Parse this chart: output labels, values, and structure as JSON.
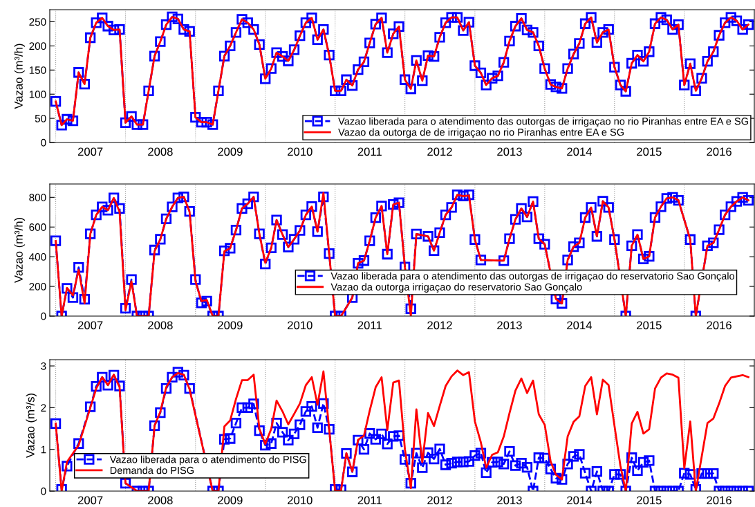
{
  "chart_data": [
    {
      "type": "line",
      "ylabel": "Vazao (m³/h)",
      "legend": "bottom right",
      "x": [
        "2007-01",
        "2007-02",
        "2007-03",
        "2007-04",
        "2007-05",
        "2007-06",
        "2007-07",
        "2007-08",
        "2007-09",
        "2007-10",
        "2007-11",
        "2007-12",
        "2008-01",
        "2008-02",
        "2008-03",
        "2008-04",
        "2008-05",
        "2008-06",
        "2008-07",
        "2008-08",
        "2008-09",
        "2008-10",
        "2008-11",
        "2008-12",
        "2009-01",
        "2009-02",
        "2009-03",
        "2009-04",
        "2009-05",
        "2009-06",
        "2009-07",
        "2009-08",
        "2009-09",
        "2009-10",
        "2009-11",
        "2009-12",
        "2010-01",
        "2010-02",
        "2010-03",
        "2010-04",
        "2010-05",
        "2010-06",
        "2010-07",
        "2010-08",
        "2010-09",
        "2010-10",
        "2010-11",
        "2010-12",
        "2011-01",
        "2011-02",
        "2011-03",
        "2011-04",
        "2011-05",
        "2011-06",
        "2011-07",
        "2011-08",
        "2011-09",
        "2011-10",
        "2011-11",
        "2011-12",
        "2012-01",
        "2012-02",
        "2012-03",
        "2012-04",
        "2012-05",
        "2012-06",
        "2012-07",
        "2012-08",
        "2012-09",
        "2012-10",
        "2012-11",
        "2012-12",
        "2013-01",
        "2013-02",
        "2013-03",
        "2013-04",
        "2013-05",
        "2013-06",
        "2013-07",
        "2013-08",
        "2013-09",
        "2013-10",
        "2013-11",
        "2013-12",
        "2014-01",
        "2014-02",
        "2014-03",
        "2014-04",
        "2014-05",
        "2014-06",
        "2014-07",
        "2014-08",
        "2014-09",
        "2014-10",
        "2014-11",
        "2014-12",
        "2015-01",
        "2015-02",
        "2015-03",
        "2015-04",
        "2015-05",
        "2015-06",
        "2015-07",
        "2015-08",
        "2015-09",
        "2015-10",
        "2015-11",
        "2015-12",
        "2016-01",
        "2016-02",
        "2016-03",
        "2016-04",
        "2016-05",
        "2016-06",
        "2016-07",
        "2016-08",
        "2016-09",
        "2016-10",
        "2016-11",
        "2016-12"
      ],
      "xlim": [
        "2006-12",
        "2017-01"
      ],
      "xticks": [
        {
          "value": "2007-07",
          "label": "2007"
        },
        {
          "value": "2008-07",
          "label": "2008"
        },
        {
          "value": "2009-07",
          "label": "2009"
        },
        {
          "value": "2010-07",
          "label": "2010"
        },
        {
          "value": "2011-07",
          "label": "2011"
        },
        {
          "value": "2012-07",
          "label": "2012"
        },
        {
          "value": "2013-07",
          "label": "2013"
        },
        {
          "value": "2014-07",
          "label": "2014"
        },
        {
          "value": "2015-07",
          "label": "2015"
        },
        {
          "value": "2016-07",
          "label": "2016"
        }
      ],
      "ylim": [
        0,
        275
      ],
      "yticks": [
        0,
        50,
        100,
        150,
        200,
        250
      ],
      "ref_lines": [
        {
          "axis": "x",
          "value": "2007-01",
          "color": "#a0a0a0",
          "line_style": "dotted"
        },
        {
          "axis": "x",
          "value": "2008-01",
          "color": "#a0a0a0",
          "line_style": "dotted"
        },
        {
          "axis": "x",
          "value": "2009-01",
          "color": "#a0a0a0",
          "line_style": "dotted"
        },
        {
          "axis": "x",
          "value": "2010-01",
          "color": "#a0a0a0",
          "line_style": "dotted"
        },
        {
          "axis": "x",
          "value": "2011-01",
          "color": "#a0a0a0",
          "line_style": "dotted"
        },
        {
          "axis": "x",
          "value": "2012-01",
          "color": "#a0a0a0",
          "line_style": "dotted"
        },
        {
          "axis": "x",
          "value": "2013-01",
          "color": "#a0a0a0",
          "line_style": "dotted"
        },
        {
          "axis": "x",
          "value": "2014-01",
          "color": "#a0a0a0",
          "line_style": "dotted"
        },
        {
          "axis": "x",
          "value": "2015-01",
          "color": "#a0a0a0",
          "line_style": "dotted"
        },
        {
          "axis": "x",
          "value": "2016-01",
          "color": "#a0a0a0",
          "line_style": "dotted"
        }
      ],
      "series": [
        {
          "name": "Vazao liberada para o atendimento das outorgas de irrigaçao no rio Piranhas entre EA e SG",
          "color": "#0000ff",
          "marker": "square",
          "line_style": "dashed",
          "values": [
            85,
            36,
            48,
            45,
            145,
            121,
            217,
            248,
            258,
            241,
            233,
            234,
            41,
            54,
            37,
            37,
            107,
            179,
            209,
            244,
            260,
            256,
            234,
            230,
            52,
            42,
            42,
            37,
            107,
            179,
            200,
            228,
            255,
            248,
            234,
            203,
            132,
            153,
            186,
            178,
            169,
            192,
            221,
            248,
            258,
            213,
            234,
            181,
            107,
            107,
            130,
            118,
            151,
            167,
            206,
            245,
            258,
            186,
            225,
            240,
            130,
            111,
            170,
            128,
            180,
            178,
            218,
            248,
            259,
            259,
            232,
            249,
            159,
            144,
            119,
            133,
            138,
            166,
            210,
            241,
            257,
            233,
            228,
            200,
            153,
            120,
            115,
            112,
            153,
            183,
            205,
            246,
            259,
            207,
            228,
            234,
            156,
            119,
            106,
            164,
            181,
            168,
            188,
            246,
            259,
            254,
            234,
            244,
            119,
            163,
            107,
            133,
            168,
            188,
            222,
            248,
            259,
            252,
            234,
            244
          ]
        },
        {
          "name": "Vazao da outorga de de irrigaçao no rio Piranhas entre EA e SG",
          "color": "#ff0000",
          "marker": "none",
          "line_style": "solid",
          "values": [
            85,
            36,
            48,
            45,
            145,
            121,
            217,
            248,
            258,
            241,
            233,
            234,
            41,
            54,
            37,
            37,
            107,
            179,
            209,
            244,
            260,
            256,
            234,
            230,
            52,
            42,
            42,
            37,
            107,
            179,
            200,
            228,
            255,
            248,
            234,
            203,
            132,
            153,
            186,
            178,
            169,
            192,
            221,
            248,
            258,
            213,
            234,
            181,
            107,
            107,
            130,
            118,
            151,
            167,
            206,
            245,
            258,
            186,
            225,
            240,
            130,
            111,
            170,
            128,
            180,
            178,
            218,
            248,
            259,
            259,
            232,
            249,
            159,
            144,
            119,
            133,
            138,
            166,
            210,
            241,
            257,
            233,
            228,
            200,
            153,
            120,
            115,
            112,
            153,
            183,
            205,
            246,
            259,
            207,
            228,
            234,
            156,
            119,
            106,
            164,
            181,
            168,
            188,
            246,
            259,
            254,
            234,
            244,
            119,
            163,
            107,
            133,
            168,
            188,
            222,
            248,
            259,
            252,
            234,
            244
          ]
        }
      ]
    },
    {
      "type": "line",
      "ylabel": "Vazao (m³/h)",
      "legend": "right",
      "x": [
        "2007-01",
        "2007-02",
        "2007-03",
        "2007-04",
        "2007-05",
        "2007-06",
        "2007-07",
        "2007-08",
        "2007-09",
        "2007-10",
        "2007-11",
        "2007-12",
        "2008-01",
        "2008-02",
        "2008-03",
        "2008-04",
        "2008-05",
        "2008-06",
        "2008-07",
        "2008-08",
        "2008-09",
        "2008-10",
        "2008-11",
        "2008-12",
        "2009-01",
        "2009-02",
        "2009-03",
        "2009-04",
        "2009-05",
        "2009-06",
        "2009-07",
        "2009-08",
        "2009-09",
        "2009-10",
        "2009-11",
        "2009-12",
        "2010-01",
        "2010-02",
        "2010-03",
        "2010-04",
        "2010-05",
        "2010-06",
        "2010-07",
        "2010-08",
        "2010-09",
        "2010-10",
        "2010-11",
        "2010-12",
        "2011-01",
        "2011-02",
        "2011-03",
        "2011-04",
        "2011-05",
        "2011-06",
        "2011-07",
        "2011-08",
        "2011-09",
        "2011-10",
        "2011-11",
        "2011-12",
        "2012-01",
        "2012-02",
        "2012-03",
        "2012-04",
        "2012-05",
        "2012-06",
        "2012-07",
        "2012-08",
        "2012-09",
        "2012-10",
        "2012-11",
        "2012-12",
        "2013-01",
        "2013-02",
        "2013-03",
        "2013-04",
        "2013-05",
        "2013-06",
        "2013-07",
        "2013-08",
        "2013-09",
        "2013-10",
        "2013-11",
        "2013-12",
        "2014-01",
        "2014-02",
        "2014-03",
        "2014-04",
        "2014-05",
        "2014-06",
        "2014-07",
        "2014-08",
        "2014-09",
        "2014-10",
        "2014-11",
        "2014-12",
        "2015-01",
        "2015-02",
        "2015-03",
        "2015-04",
        "2015-05",
        "2015-06",
        "2015-07",
        "2015-08",
        "2015-09",
        "2015-10",
        "2015-11",
        "2015-12",
        "2016-01",
        "2016-02",
        "2016-03",
        "2016-04",
        "2016-05",
        "2016-06",
        "2016-07",
        "2016-08",
        "2016-09",
        "2016-10",
        "2016-11",
        "2016-12"
      ],
      "xlim": [
        "2006-12",
        "2017-01"
      ],
      "xticks": [
        {
          "value": "2007-07",
          "label": "2007"
        },
        {
          "value": "2008-07",
          "label": "2008"
        },
        {
          "value": "2009-07",
          "label": "2009"
        },
        {
          "value": "2010-07",
          "label": "2010"
        },
        {
          "value": "2011-07",
          "label": "2011"
        },
        {
          "value": "2012-07",
          "label": "2012"
        },
        {
          "value": "2013-07",
          "label": "2013"
        },
        {
          "value": "2014-07",
          "label": "2014"
        },
        {
          "value": "2015-07",
          "label": "2015"
        },
        {
          "value": "2016-07",
          "label": "2016"
        }
      ],
      "ylim": [
        0,
        890
      ],
      "yticks": [
        0,
        200,
        400,
        600,
        800
      ],
      "ref_lines": [
        {
          "axis": "x",
          "value": "2007-01",
          "color": "#a0a0a0",
          "line_style": "dotted"
        },
        {
          "axis": "x",
          "value": "2008-01",
          "color": "#a0a0a0",
          "line_style": "dotted"
        },
        {
          "axis": "x",
          "value": "2009-01",
          "color": "#a0a0a0",
          "line_style": "dotted"
        },
        {
          "axis": "x",
          "value": "2010-01",
          "color": "#a0a0a0",
          "line_style": "dotted"
        },
        {
          "axis": "x",
          "value": "2011-01",
          "color": "#a0a0a0",
          "line_style": "dotted"
        },
        {
          "axis": "x",
          "value": "2012-01",
          "color": "#a0a0a0",
          "line_style": "dotted"
        },
        {
          "axis": "x",
          "value": "2013-01",
          "color": "#a0a0a0",
          "line_style": "dotted"
        },
        {
          "axis": "x",
          "value": "2014-01",
          "color": "#a0a0a0",
          "line_style": "dotted"
        },
        {
          "axis": "x",
          "value": "2015-01",
          "color": "#a0a0a0",
          "line_style": "dotted"
        },
        {
          "axis": "x",
          "value": "2016-01",
          "color": "#a0a0a0",
          "line_style": "dotted"
        }
      ],
      "series": [
        {
          "name": "Vazao liberada para o atendimento das outorgas de irrigaçao do reservatorio Sao Gonçalo",
          "color": "#0000ff",
          "marker": "square",
          "line_style": "dashed",
          "values": [
            507,
            0,
            187,
            125,
            328,
            114,
            554,
            682,
            736,
            714,
            796,
            725,
            53,
            246,
            0,
            0,
            0,
            445,
            518,
            655,
            736,
            796,
            803,
            705,
            246,
            89,
            101,
            0,
            0,
            440,
            457,
            580,
            725,
            757,
            803,
            554,
            351,
            460,
            647,
            549,
            465,
            518,
            577,
            682,
            738,
            569,
            803,
            421,
            0,
            0,
            null,
            125,
            356,
            374,
            507,
            663,
            741,
            417,
            752,
            764,
            330,
            50,
            553,
            null,
            537,
            441,
            562,
            682,
            732,
            817,
            809,
            817,
            516,
            378,
            null,
            null,
            null,
            373,
            521,
            652,
            725,
            668,
            772,
            521,
            484,
            null,
            115,
            85,
            378,
            468,
            493,
            664,
            732,
            537,
            774,
            732,
            516,
            null,
            0,
            474,
            549,
            385,
            402,
            665,
            737,
            793,
            800,
            780,
            null,
            516,
            0,
            null,
            474,
            493,
            582,
            682,
            737,
            773,
            800,
            780
          ]
        },
        {
          "name": "Vazao da outorga irrigaçao do reservatorio Sao Gonçalo",
          "color": "#ff0000",
          "marker": "none",
          "line_style": "solid",
          "values": [
            507,
            0,
            190,
            140,
            312,
            86,
            554,
            682,
            736,
            714,
            796,
            702,
            39,
            234,
            0,
            0,
            0,
            437,
            518,
            655,
            736,
            796,
            803,
            702,
            234,
            101,
            109,
            0,
            0,
            437,
            457,
            580,
            725,
            757,
            803,
            554,
            359,
            460,
            647,
            549,
            465,
            518,
            577,
            682,
            738,
            569,
            830,
            421,
            0,
            0,
            null,
            125,
            356,
            374,
            507,
            663,
            741,
            417,
            752,
            764,
            330,
            0,
            553,
            null,
            537,
            441,
            562,
            682,
            732,
            817,
            808,
            812,
            516,
            378,
            null,
            null,
            null,
            373,
            521,
            652,
            725,
            668,
            772,
            521,
            484,
            null,
            115,
            85,
            378,
            468,
            493,
            664,
            732,
            537,
            774,
            732,
            516,
            null,
            0,
            474,
            549,
            385,
            402,
            665,
            737,
            793,
            800,
            780,
            null,
            516,
            0,
            null,
            474,
            493,
            582,
            682,
            737,
            773,
            800,
            780
          ]
        }
      ]
    },
    {
      "type": "line",
      "ylabel": "Vazao (m³/s)",
      "legend": "bottom left",
      "x": [
        "2007-01",
        "2007-02",
        "2007-03",
        "2007-04",
        "2007-05",
        "2007-06",
        "2007-07",
        "2007-08",
        "2007-09",
        "2007-10",
        "2007-11",
        "2007-12",
        "2008-01",
        "2008-02",
        "2008-03",
        "2008-04",
        "2008-05",
        "2008-06",
        "2008-07",
        "2008-08",
        "2008-09",
        "2008-10",
        "2008-11",
        "2008-12",
        "2009-01",
        "2009-02",
        "2009-03",
        "2009-04",
        "2009-05",
        "2009-06",
        "2009-07",
        "2009-08",
        "2009-09",
        "2009-10",
        "2009-11",
        "2009-12",
        "2010-01",
        "2010-02",
        "2010-03",
        "2010-04",
        "2010-05",
        "2010-06",
        "2010-07",
        "2010-08",
        "2010-09",
        "2010-10",
        "2010-11",
        "2010-12",
        "2011-01",
        "2011-02",
        "2011-03",
        "2011-04",
        "2011-05",
        "2011-06",
        "2011-07",
        "2011-08",
        "2011-09",
        "2011-10",
        "2011-11",
        "2011-12",
        "2012-01",
        "2012-02",
        "2012-03",
        "2012-04",
        "2012-05",
        "2012-06",
        "2012-07",
        "2012-08",
        "2012-09",
        "2012-10",
        "2012-11",
        "2012-12",
        "2013-01",
        "2013-02",
        "2013-03",
        "2013-04",
        "2013-05",
        "2013-06",
        "2013-07",
        "2013-08",
        "2013-09",
        "2013-10",
        "2013-11",
        "2013-12",
        "2014-01",
        "2014-02",
        "2014-03",
        "2014-04",
        "2014-05",
        "2014-06",
        "2014-07",
        "2014-08",
        "2014-09",
        "2014-10",
        "2014-11",
        "2014-12",
        "2015-01",
        "2015-02",
        "2015-03",
        "2015-04",
        "2015-05",
        "2015-06",
        "2015-07",
        "2015-08",
        "2015-09",
        "2015-10",
        "2015-11",
        "2015-12",
        "2016-01",
        "2016-02",
        "2016-03",
        "2016-04",
        "2016-05",
        "2016-06",
        "2016-07",
        "2016-08",
        "2016-09",
        "2016-10",
        "2016-11",
        "2016-12"
      ],
      "xlim": [
        "2006-12",
        "2017-01"
      ],
      "xticks": [
        {
          "value": "2007-07",
          "label": "2007"
        },
        {
          "value": "2008-07",
          "label": "2008"
        },
        {
          "value": "2009-07",
          "label": "2009"
        },
        {
          "value": "2010-07",
          "label": "2010"
        },
        {
          "value": "2011-07",
          "label": "2011"
        },
        {
          "value": "2012-07",
          "label": "2012"
        },
        {
          "value": "2013-07",
          "label": "2013"
        },
        {
          "value": "2014-07",
          "label": "2014"
        },
        {
          "value": "2015-07",
          "label": "2015"
        },
        {
          "value": "2016-07",
          "label": "2016"
        }
      ],
      "ylim": [
        0,
        3.15
      ],
      "yticks": [
        0,
        1,
        2,
        3
      ],
      "ref_lines": [
        {
          "axis": "x",
          "value": "2007-01",
          "color": "#a0a0a0",
          "line_style": "dotted"
        },
        {
          "axis": "x",
          "value": "2008-01",
          "color": "#a0a0a0",
          "line_style": "dotted"
        },
        {
          "axis": "x",
          "value": "2009-01",
          "color": "#a0a0a0",
          "line_style": "dotted"
        },
        {
          "axis": "x",
          "value": "2010-01",
          "color": "#a0a0a0",
          "line_style": "dotted"
        },
        {
          "axis": "x",
          "value": "2011-01",
          "color": "#a0a0a0",
          "line_style": "dotted"
        },
        {
          "axis": "x",
          "value": "2012-01",
          "color": "#a0a0a0",
          "line_style": "dotted"
        },
        {
          "axis": "x",
          "value": "2013-01",
          "color": "#a0a0a0",
          "line_style": "dotted"
        },
        {
          "axis": "x",
          "value": "2014-01",
          "color": "#a0a0a0",
          "line_style": "dotted"
        },
        {
          "axis": "x",
          "value": "2015-01",
          "color": "#a0a0a0",
          "line_style": "dotted"
        },
        {
          "axis": "x",
          "value": "2016-01",
          "color": "#a0a0a0",
          "line_style": "dotted"
        }
      ],
      "series": [
        {
          "name": "Vazao liberada para o atendimento do PISG",
          "color": "#0000ff",
          "marker": "square",
          "line_style": "dashed",
          "values": [
            1.62,
            0.04,
            0.6,
            null,
            1.14,
            null,
            2.02,
            2.51,
            2.73,
            2.54,
            2.78,
            2.52,
            0.19,
            null,
            0,
            0,
            0,
            1.57,
            1.88,
            2.46,
            2.73,
            2.85,
            2.78,
            2.46,
            null,
            null,
            null,
            0,
            0,
            1.24,
            1.26,
            1.63,
            2.0,
            2.0,
            2.09,
            1.45,
            1.1,
            1.14,
            1.63,
            1.41,
            1.22,
            1.37,
            1.59,
            1.91,
            2.03,
            1.52,
            2.1,
            1.48,
            0.04,
            0.03,
            0.9,
            0.46,
            1.22,
            1.0,
            1.38,
            1.24,
            1.37,
            1.13,
            1.31,
            1.33,
            0.76,
            0.19,
            0.91,
            0.56,
            0.92,
            0.77,
            1.01,
            0.63,
            0.67,
            0.7,
            0.7,
            0.71,
            0.85,
            0.91,
            0.44,
            0.69,
            0.7,
            0.65,
            0.95,
            0.61,
            0.67,
            0.57,
            0,
            0.8,
            0.79,
            0.53,
            0.31,
            0.28,
            0.65,
            0.83,
            0.88,
            0.43,
            0,
            0.47,
            0,
            0,
            0.4,
            0.4,
            0,
            0.8,
            0.49,
            0.69,
            0.73,
            0,
            0,
            0,
            0,
            0,
            0.43,
            0.4,
            0.04,
            0.42,
            0.42,
            0.42,
            0,
            0,
            0,
            0,
            0,
            0
          ]
        },
        {
          "name": "Demanda do PISG",
          "color": "#ff0000",
          "marker": "none",
          "line_style": "solid",
          "values": [
            1.62,
            0,
            0.7,
            null,
            1.1,
            null,
            2.0,
            2.46,
            2.73,
            2.54,
            2.79,
            2.49,
            0.19,
            null,
            0,
            0,
            0,
            1.57,
            1.9,
            2.49,
            2.73,
            2.83,
            2.79,
            2.44,
            null,
            null,
            null,
            0,
            0,
            1.55,
            1.69,
            2.21,
            2.66,
            2.66,
            2.79,
            1.49,
            1.13,
            1.49,
            2.17,
            1.91,
            1.6,
            1.85,
            2.1,
            2.54,
            2.73,
            2.07,
            2.87,
            1.48,
            0.01,
            0.01,
            0.91,
            0.47,
            1.23,
            1.33,
            1.93,
            2.49,
            2.73,
            1.46,
            2.6,
            2.65,
            1.0,
            0.07,
            1.96,
            0.69,
            1.87,
            1.56,
            2.04,
            2.52,
            2.75,
            2.89,
            2.78,
            2.85,
            1.67,
            1.17,
            0.56,
            0.87,
            0.93,
            1.31,
            1.87,
            2.41,
            2.7,
            2.35,
            2.65,
            1.84,
            1.59,
            0.71,
            0.39,
            0.28,
            1.31,
            1.66,
            1.79,
            2.52,
            2.73,
            1.84,
            2.67,
            2.54,
            1.56,
            0.6,
            0,
            1.62,
            1.9,
            1.38,
            1.48,
            2.46,
            2.72,
            2.82,
            2.79,
            2.72,
            0.55,
            1.67,
            0,
            0.83,
            1.63,
            1.74,
            2.1,
            2.52,
            2.72,
            2.75,
            2.78,
            2.73
          ]
        }
      ]
    }
  ]
}
